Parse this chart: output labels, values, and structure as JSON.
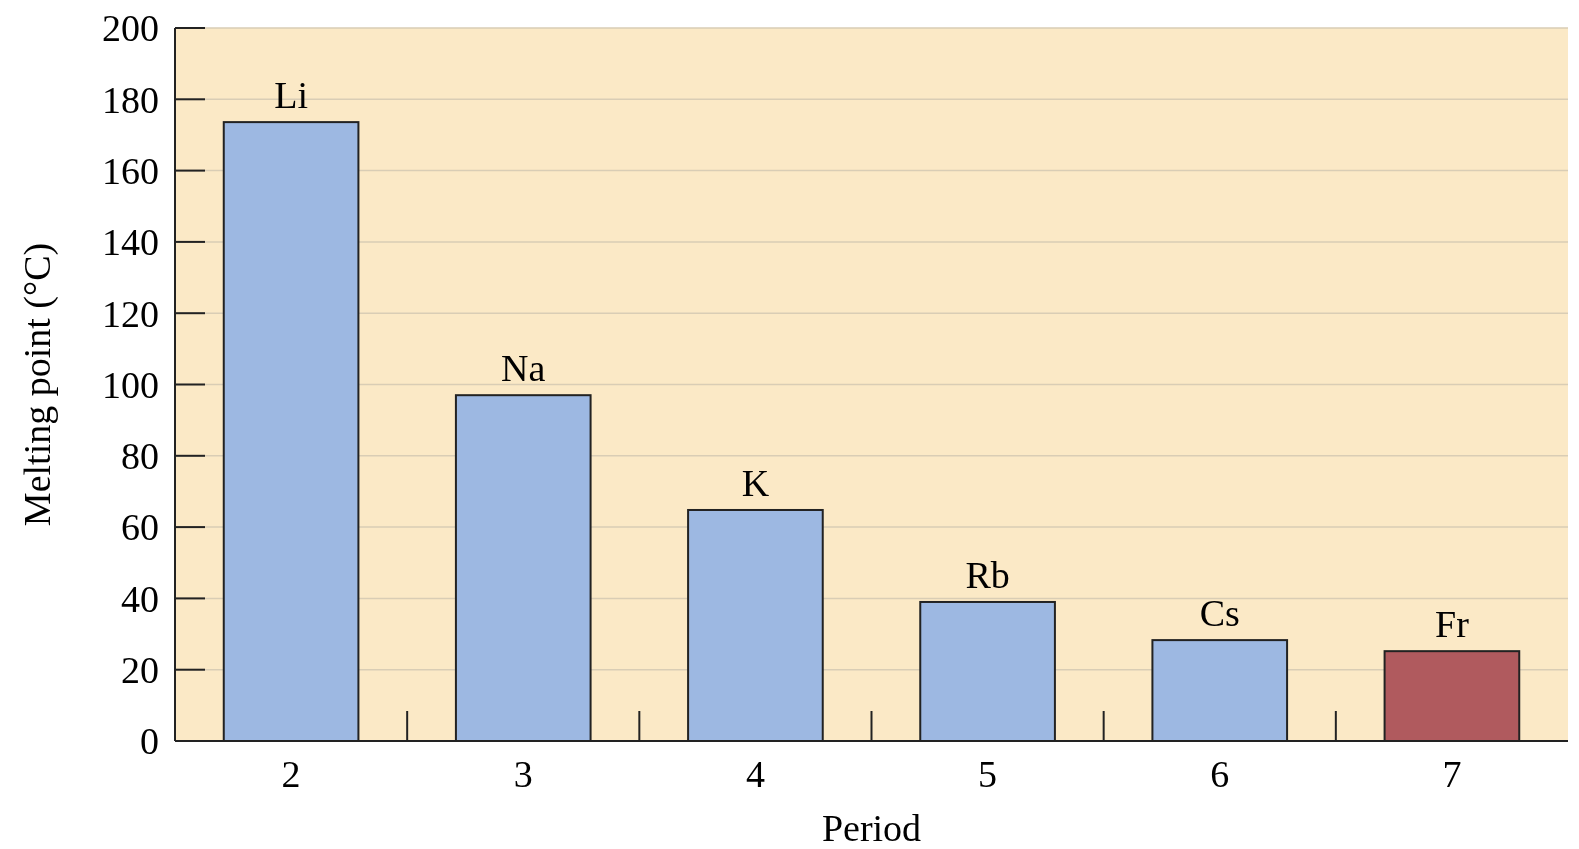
{
  "chart_data": {
    "type": "bar",
    "xlabel": "Period",
    "ylabel": "Melting point (°C)",
    "categories": [
      "2",
      "3",
      "4",
      "5",
      "6",
      "7"
    ],
    "values": [
      173.6,
      97,
      64.8,
      39,
      28.3,
      25.2
    ],
    "colors": [
      "#9db8e2",
      "#9db8e2",
      "#9db8e2",
      "#9db8e2",
      "#9db8e2",
      "#b05a5e"
    ],
    "ylim": [
      0,
      200
    ],
    "yticks": [
      0,
      20,
      40,
      60,
      80,
      100,
      120,
      140,
      160,
      180,
      200
    ],
    "grid": "y",
    "annotations": [
      {
        "text": "Li",
        "x": "2",
        "y": 173.6
      },
      {
        "text": "Na",
        "x": "3",
        "y": 97
      },
      {
        "text": "K",
        "x": "4",
        "y": 64.8
      },
      {
        "text": "Rb",
        "x": "5",
        "y": 39
      },
      {
        "text": "Cs",
        "x": "6",
        "y": 28.3
      },
      {
        "text": "Fr",
        "x": "7",
        "y": 25.2
      }
    ]
  }
}
